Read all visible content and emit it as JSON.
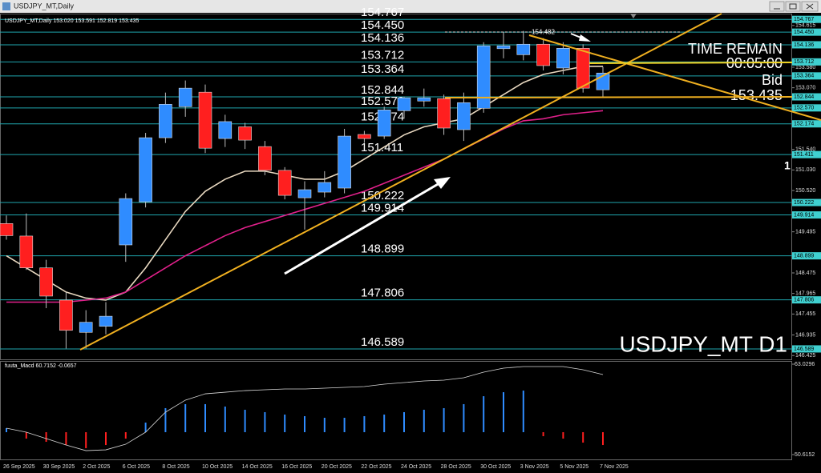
{
  "window_title": "USDJPY_MT,Daily",
  "chart_data": [
    {
      "type": "candlestick",
      "title": "USDJPY_MT,Daily",
      "header_values": [
        153.02,
        153.591,
        152.819,
        153.435
      ],
      "header_value_labels": [
        "153.020",
        "153.591",
        "152.819",
        "153.435"
      ],
      "categories": [
        "26 Sep 2025",
        null,
        "30 Sep 2025",
        null,
        "2 Oct 2025",
        null,
        "6 Oct 2025",
        null,
        "8 Oct 2025",
        null,
        "10 Oct 2025",
        null,
        "14 Oct 2025",
        null,
        "16 Oct 2025",
        null,
        "20 Oct 2025",
        null,
        "22 Oct 2025",
        null,
        "24 Oct 2025",
        null,
        "28 Oct 2025",
        null,
        "30 Oct 2025",
        null,
        "3 Nov 2025",
        null,
        "5 Nov 2025",
        null,
        "7 Nov 2025"
      ],
      "open": [
        149.7,
        149.39,
        148.6,
        147.8,
        147.0,
        147.15,
        149.17,
        150.24,
        151.83,
        152.6,
        152.96,
        151.81,
        152.1,
        151.61,
        151.02,
        150.34,
        150.48,
        150.58,
        151.91,
        151.87,
        152.5,
        152.74,
        152.8,
        152.03,
        152.56,
        154.04,
        153.89,
        154.15,
        153.56,
        154.05,
        153.02
      ],
      "high": [
        149.9,
        149.95,
        148.8,
        148.0,
        147.55,
        147.75,
        150.45,
        151.95,
        152.95,
        153.25,
        153.15,
        152.4,
        152.2,
        151.75,
        151.1,
        150.75,
        151.0,
        152.05,
        152.0,
        152.6,
        152.85,
        153.05,
        152.9,
        152.95,
        154.2,
        154.45,
        154.48,
        154.3,
        154.2,
        154.15,
        153.591
      ],
      "low": [
        149.3,
        148.55,
        147.6,
        146.6,
        146.6,
        146.95,
        148.75,
        150.1,
        151.7,
        152.35,
        151.45,
        151.6,
        151.55,
        150.9,
        150.3,
        149.55,
        150.35,
        150.45,
        151.7,
        151.8,
        152.3,
        152.6,
        151.9,
        151.75,
        152.45,
        153.8,
        153.75,
        153.5,
        153.4,
        152.95,
        152.819
      ],
      "close": [
        149.4,
        148.6,
        147.9,
        147.05,
        147.25,
        147.4,
        150.32,
        151.83,
        152.66,
        153.06,
        151.57,
        152.23,
        151.77,
        151.02,
        150.4,
        150.54,
        150.72,
        151.87,
        151.81,
        152.52,
        152.82,
        152.82,
        152.07,
        152.7,
        154.11,
        154.11,
        154.15,
        153.62,
        154.05,
        153.06,
        153.435
      ],
      "up_color": "#2f8cff",
      "down_color": "#ff1f1f",
      "overlays": [
        {
          "color": "#e8d8c0",
          "values": [
            148.9,
            148.6,
            148.3,
            148.0,
            147.85,
            147.8,
            148.0,
            148.6,
            149.3,
            150.0,
            150.5,
            150.8,
            151.0,
            151.0,
            150.9,
            150.8,
            150.8,
            151.0,
            151.3,
            151.6,
            151.9,
            152.1,
            152.2,
            152.3,
            152.6,
            152.9,
            153.2,
            153.4,
            153.5,
            153.6,
            153.6
          ]
        },
        {
          "color": "#e0208a",
          "values": [
            147.75,
            147.75,
            147.75,
            147.75,
            147.8,
            147.85,
            148.0,
            148.3,
            148.6,
            148.9,
            149.15,
            149.4,
            149.6,
            149.75,
            149.9,
            150.05,
            150.2,
            150.35,
            150.5,
            150.7,
            150.9,
            151.1,
            151.3,
            151.55,
            151.8,
            152.05,
            152.25,
            152.3,
            152.4,
            152.45,
            152.5
          ]
        }
      ],
      "levels": [
        154.767,
        {
          "value": 154.45,
          "label": "154.450"
        },
        154.136,
        153.712,
        153.364,
        152.844,
        {
          "value": 152.57,
          "label": "152.570"
        },
        152.174,
        151.411,
        150.222,
        149.914,
        148.899,
        147.806,
        146.589
      ],
      "level_color": "#1fa6ae",
      "high_marker": 154.482,
      "ylim": [
        146.33,
        154.91
      ],
      "yticks": [
        154.615,
        {
          "value": 153.58,
          "label": "153.580"
        },
        {
          "value": 153.07,
          "label": "153.070"
        },
        {
          "value": 151.54,
          "label": "151.540"
        },
        {
          "value": 151.03,
          "label": "151.030"
        },
        {
          "value": 150.52,
          "label": "150.520"
        },
        149.495,
        148.475,
        147.965,
        147.455,
        146.935,
        146.425
      ],
      "time_remain": "TIME REMAIN",
      "timer": "00:05:00",
      "bid_label": "Bid",
      "bid": 153.435,
      "symbol": "USDJPY_MT D1",
      "marker": "1"
    },
    {
      "type": "macd",
      "title": "fuuta_Macd",
      "header_values": [
        60.7152,
        -0.0657
      ],
      "ylim": [
        50.6152,
        63.0296
      ],
      "yticks": [
        63.0296,
        50.6152
      ],
      "line_color": "#d8d8d8",
      "line": [
        54.24,
        53.69,
        52.81,
        51.93,
        51.16,
        51.27,
        52.04,
        53.69,
        56.44,
        58.09,
        58.96,
        59.18,
        59.4,
        59.51,
        59.62,
        59.62,
        59.73,
        59.84,
        59.95,
        60.28,
        60.5,
        60.72,
        60.83,
        61.16,
        61.93,
        62.48,
        62.7,
        62.7,
        62.7,
        62.26,
        61.6
      ],
      "zero": 53.69,
      "histogram": [
        54.24,
        52.81,
        52.37,
        51.93,
        51.49,
        51.93,
        52.81,
        55.01,
        56.99,
        57.54,
        57.54,
        57.21,
        56.77,
        56.44,
        56.11,
        55.89,
        55.67,
        55.67,
        55.89,
        56.11,
        56.44,
        56.77,
        56.99,
        57.54,
        58.63,
        59.18,
        59.4,
        53.14,
        52.81,
        52.26,
        51.93
      ],
      "up_color": "#2f8cff",
      "down_color": "#ff1f1f"
    }
  ]
}
